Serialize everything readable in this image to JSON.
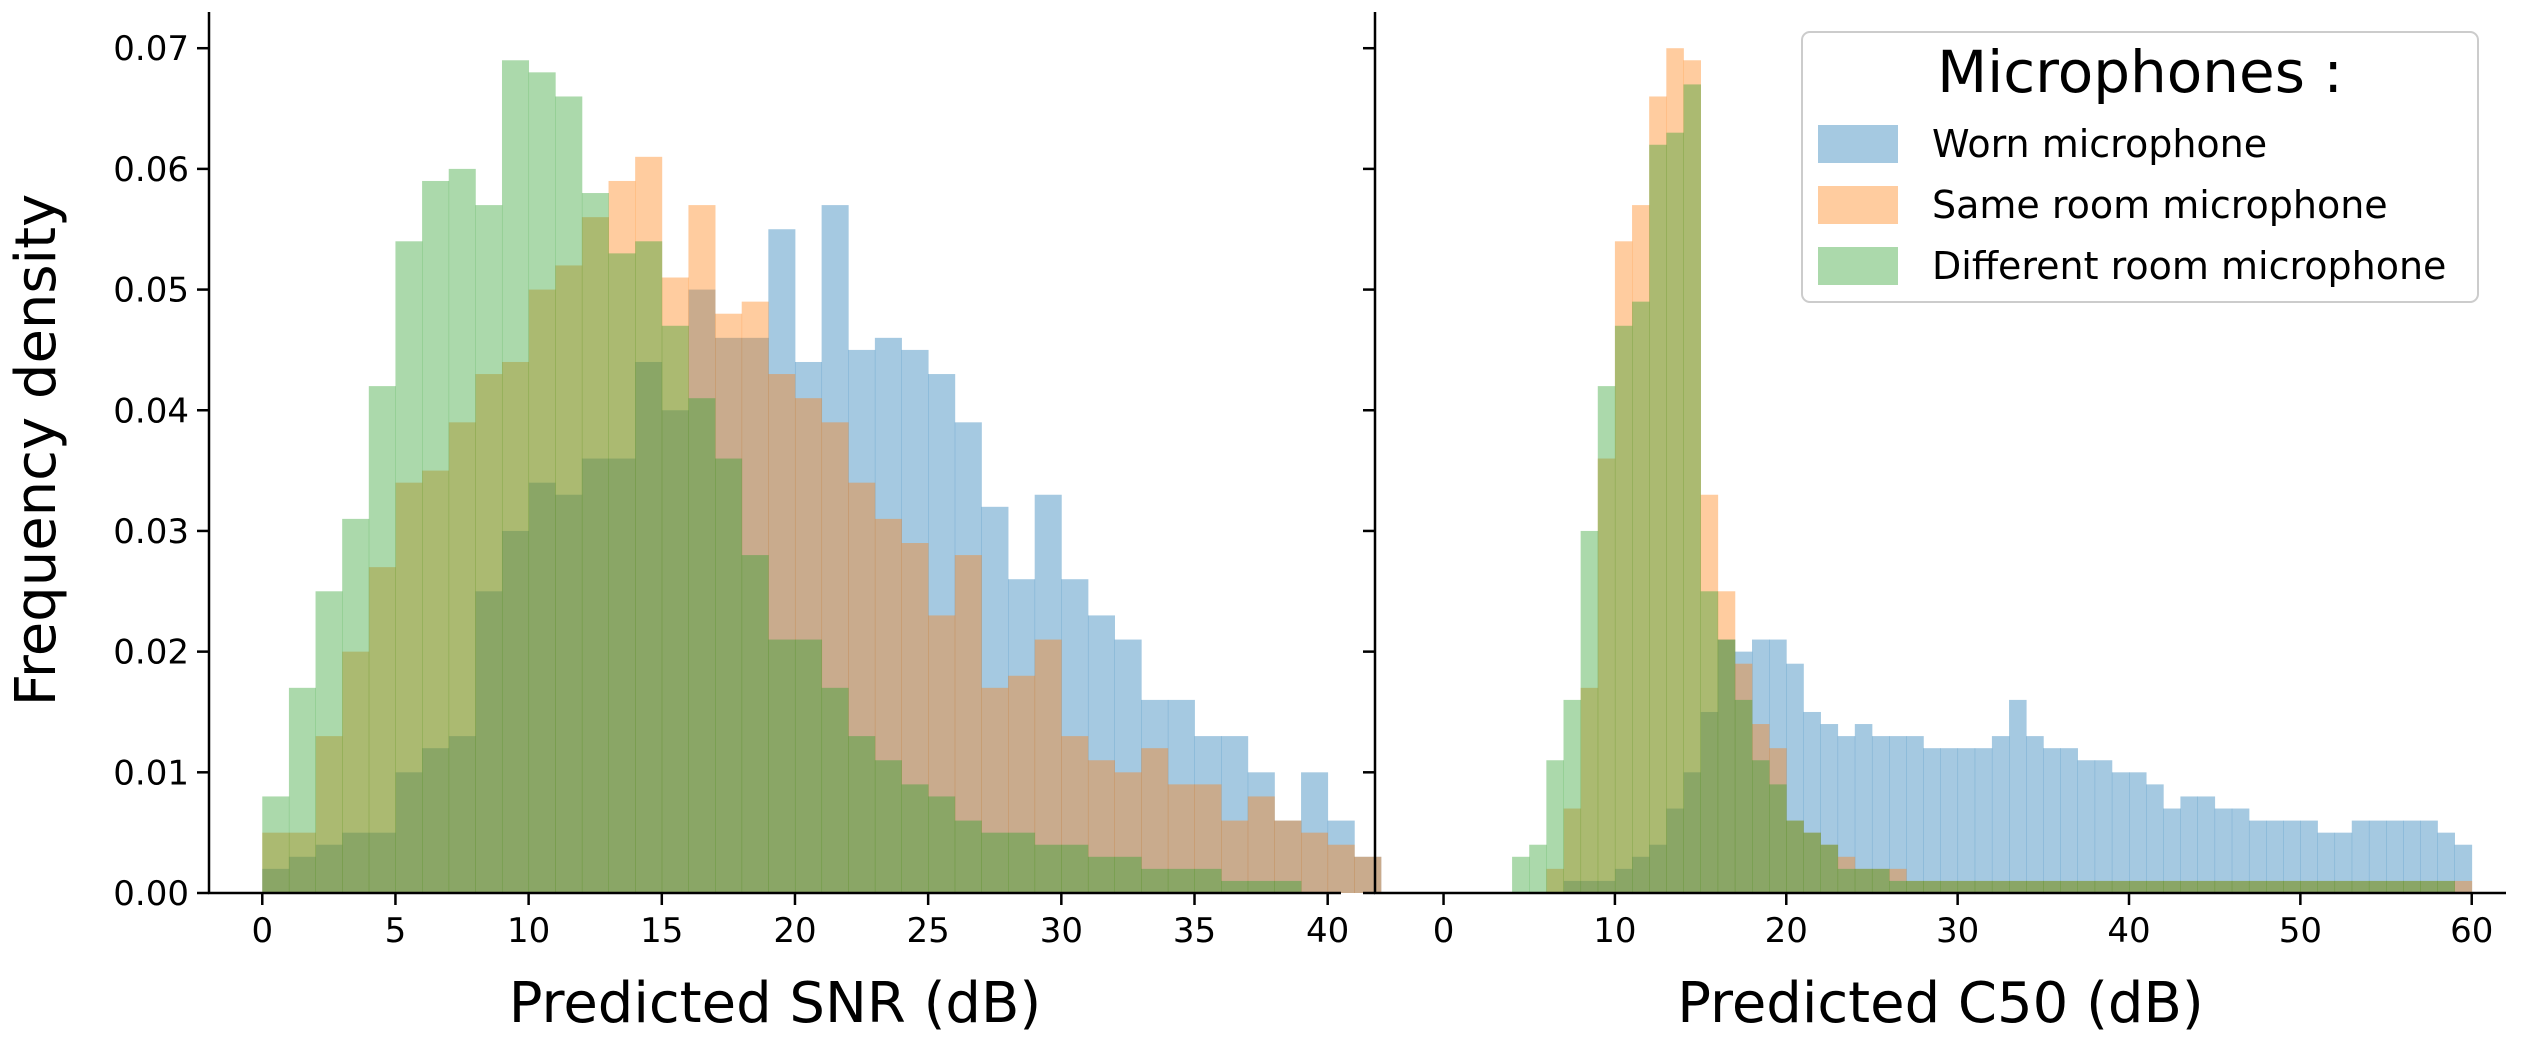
{
  "figure": {
    "ylabel": "Frequency density"
  },
  "legend": {
    "title": "Microphones :",
    "items": [
      {
        "label": "Worn microphone",
        "color": "#1f77b4"
      },
      {
        "label": "Same room microphone",
        "color": "#ff7f0e"
      },
      {
        "label": "Different room microphone",
        "color": "#2ca02c"
      }
    ]
  },
  "chart_data": [
    {
      "type": "bar",
      "subtype": "overlaid-histogram",
      "xlabel": "Predicted SNR (dB)",
      "ylabel": "Frequency density",
      "xlim": [
        -2,
        40.5
      ],
      "ylim": [
        0,
        0.073
      ],
      "xticks": [
        0,
        5,
        10,
        15,
        20,
        25,
        30,
        35,
        40
      ],
      "yticks": [
        0.0,
        0.01,
        0.02,
        0.03,
        0.04,
        0.05,
        0.06,
        0.07
      ],
      "ytick_labels": [
        "0.00",
        "0.01",
        "0.02",
        "0.03",
        "0.04",
        "0.05",
        "0.06",
        "0.07"
      ],
      "bin_start": 0,
      "bin_width": 1,
      "series": [
        {
          "name": "Worn microphone",
          "color": "#1f77b4",
          "opacity": 0.4,
          "values": [
            0.002,
            0.003,
            0.004,
            0.005,
            0.005,
            0.01,
            0.012,
            0.013,
            0.025,
            0.03,
            0.034,
            0.033,
            0.036,
            0.036,
            0.044,
            0.04,
            0.05,
            0.046,
            0.046,
            0.055,
            0.044,
            0.057,
            0.045,
            0.046,
            0.045,
            0.043,
            0.039,
            0.032,
            0.026,
            0.033,
            0.026,
            0.023,
            0.021,
            0.016,
            0.016,
            0.013,
            0.013,
            0.01,
            0.006,
            0.01,
            0.006,
            0.003
          ]
        },
        {
          "name": "Same room microphone",
          "color": "#ff7f0e",
          "opacity": 0.4,
          "values": [
            0.005,
            0.005,
            0.013,
            0.02,
            0.027,
            0.034,
            0.035,
            0.039,
            0.043,
            0.044,
            0.05,
            0.052,
            0.056,
            0.059,
            0.061,
            0.051,
            0.057,
            0.048,
            0.049,
            0.043,
            0.041,
            0.039,
            0.034,
            0.031,
            0.029,
            0.023,
            0.028,
            0.017,
            0.018,
            0.021,
            0.013,
            0.011,
            0.01,
            0.012,
            0.009,
            0.009,
            0.006,
            0.008,
            0.006,
            0.005,
            0.004,
            0.003
          ]
        },
        {
          "name": "Different room microphone",
          "color": "#2ca02c",
          "opacity": 0.4,
          "values": [
            0.008,
            0.017,
            0.025,
            0.031,
            0.042,
            0.054,
            0.059,
            0.06,
            0.057,
            0.069,
            0.068,
            0.066,
            0.058,
            0.053,
            0.054,
            0.047,
            0.041,
            0.036,
            0.028,
            0.021,
            0.021,
            0.017,
            0.013,
            0.011,
            0.009,
            0.008,
            0.006,
            0.005,
            0.005,
            0.004,
            0.004,
            0.003,
            0.003,
            0.002,
            0.002,
            0.002,
            0.001,
            0.001,
            0.001,
            0.0,
            0.0,
            0.0
          ]
        }
      ]
    },
    {
      "type": "bar",
      "subtype": "overlaid-histogram",
      "xlabel": "Predicted C50 (dB)",
      "xlim": [
        -4,
        62
      ],
      "ylim": [
        0,
        0.073
      ],
      "xticks": [
        0,
        10,
        20,
        30,
        40,
        50,
        60
      ],
      "yticks": [
        0.0,
        0.01,
        0.02,
        0.03,
        0.04,
        0.05,
        0.06,
        0.07
      ],
      "ytick_labels": [],
      "bin_start": 0,
      "bin_width": 1,
      "series": [
        {
          "name": "Worn microphone",
          "color": "#1f77b4",
          "opacity": 0.4,
          "values": [
            0.0,
            0.0,
            0.0,
            0.0,
            0.0,
            0.0,
            0.0,
            0.001,
            0.001,
            0.001,
            0.002,
            0.003,
            0.004,
            0.007,
            0.01,
            0.015,
            0.021,
            0.02,
            0.021,
            0.021,
            0.019,
            0.015,
            0.014,
            0.013,
            0.014,
            0.013,
            0.013,
            0.013,
            0.012,
            0.012,
            0.012,
            0.012,
            0.013,
            0.016,
            0.013,
            0.012,
            0.012,
            0.011,
            0.011,
            0.01,
            0.01,
            0.009,
            0.007,
            0.008,
            0.008,
            0.007,
            0.007,
            0.006,
            0.006,
            0.006,
            0.006,
            0.005,
            0.005,
            0.006,
            0.006,
            0.006,
            0.006,
            0.006,
            0.005,
            0.004
          ]
        },
        {
          "name": "Same room microphone",
          "color": "#ff7f0e",
          "opacity": 0.4,
          "values": [
            0.0,
            0.0,
            0.0,
            0.0,
            0.0,
            0.0,
            0.002,
            0.007,
            0.017,
            0.036,
            0.054,
            0.057,
            0.066,
            0.07,
            0.069,
            0.033,
            0.025,
            0.019,
            0.014,
            0.012,
            0.006,
            0.005,
            0.004,
            0.003,
            0.002,
            0.002,
            0.002,
            0.001,
            0.001,
            0.001,
            0.001,
            0.001,
            0.001,
            0.001,
            0.001,
            0.001,
            0.001,
            0.001,
            0.001,
            0.001,
            0.001,
            0.001,
            0.001,
            0.001,
            0.001,
            0.001,
            0.001,
            0.001,
            0.001,
            0.001,
            0.001,
            0.001,
            0.001,
            0.001,
            0.001,
            0.001,
            0.001,
            0.001,
            0.001,
            0.001
          ]
        },
        {
          "name": "Different room microphone",
          "color": "#2ca02c",
          "opacity": 0.4,
          "values": [
            0.0,
            0.0,
            0.0,
            0.0,
            0.003,
            0.004,
            0.011,
            0.016,
            0.03,
            0.042,
            0.047,
            0.049,
            0.062,
            0.063,
            0.067,
            0.025,
            0.021,
            0.016,
            0.011,
            0.009,
            0.006,
            0.005,
            0.004,
            0.002,
            0.002,
            0.002,
            0.001,
            0.001,
            0.001,
            0.001,
            0.001,
            0.001,
            0.001,
            0.001,
            0.001,
            0.001,
            0.001,
            0.001,
            0.001,
            0.001,
            0.001,
            0.001,
            0.001,
            0.001,
            0.001,
            0.001,
            0.001,
            0.001,
            0.001,
            0.001,
            0.001,
            0.001,
            0.001,
            0.001,
            0.001,
            0.001,
            0.001,
            0.001,
            0.001,
            0.0
          ]
        }
      ]
    }
  ]
}
